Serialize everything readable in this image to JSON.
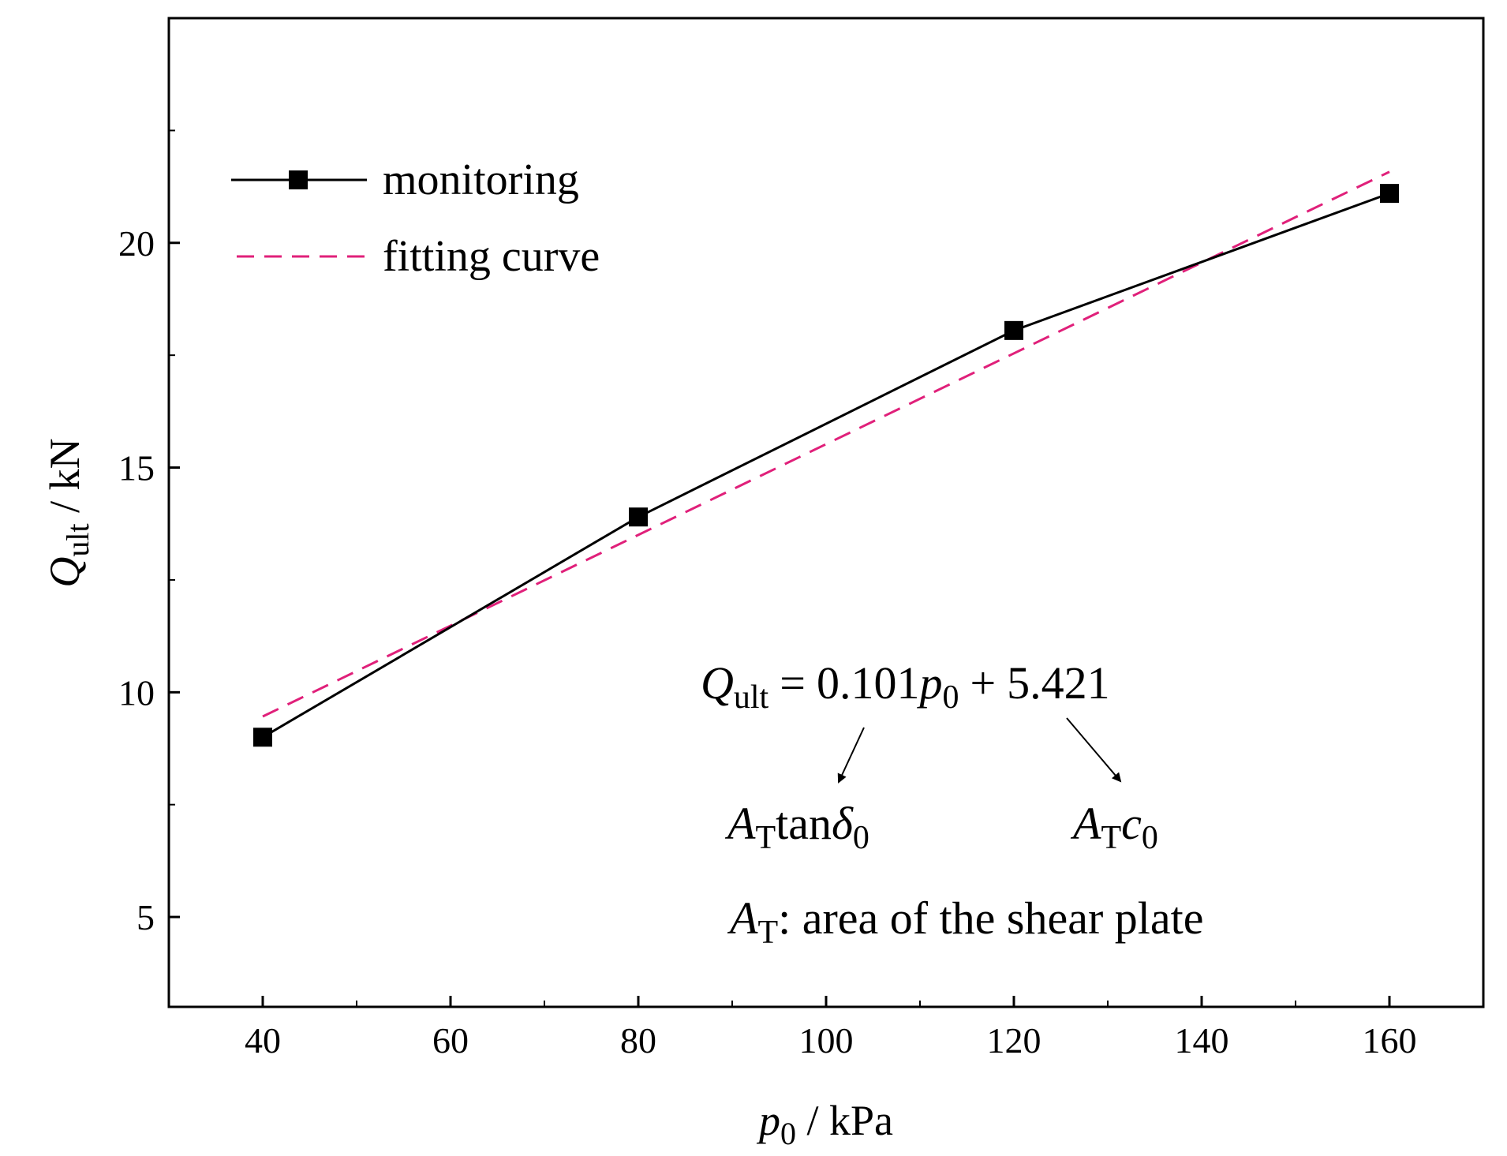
{
  "chart_data": {
    "type": "line",
    "xlabel": {
      "var": "p",
      "sub": "0",
      "unit": " / kPa"
    },
    "ylabel": {
      "var": "Q",
      "sub": "ult",
      "unit": " / kN"
    },
    "xlim": [
      30,
      170
    ],
    "ylim": [
      3,
      25
    ],
    "xticks": [
      40,
      60,
      80,
      100,
      120,
      140,
      160
    ],
    "xtick_labels": [
      "40",
      "60",
      "80",
      "100",
      "120",
      "140",
      "160"
    ],
    "xminor": [
      50,
      70,
      90,
      110,
      130,
      150
    ],
    "yticks": [
      5,
      10,
      15,
      20
    ],
    "ytick_labels": [
      "5",
      "10",
      "15",
      "20"
    ],
    "yminor": [
      7.5,
      12.5,
      17.5,
      22.5
    ],
    "series": [
      {
        "name": "monitoring",
        "style": "solid-square",
        "color": "#000000",
        "x": [
          40,
          80,
          120,
          160
        ],
        "y": [
          9.0,
          13.9,
          18.05,
          21.1
        ]
      },
      {
        "name": "fitting curve",
        "style": "dashed",
        "color": "#e0207a",
        "x": [
          40,
          160
        ],
        "y": [
          9.461,
          21.581
        ]
      }
    ],
    "legend": {
      "position": "top-left",
      "entries": [
        "monitoring",
        "fitting curve"
      ]
    },
    "equation": {
      "lhs_var": "Q",
      "lhs_sub": "ult",
      "equals": "=",
      "coef": "0.101",
      "var": "p",
      "var_sub": "0",
      "plus": "+",
      "intercept": "5.421"
    },
    "annotations": {
      "slope": {
        "var": "A",
        "sub": "T",
        "func": "tan",
        "greek": "δ",
        "greek_sub": "0"
      },
      "intercept": {
        "var": "A",
        "sub": "T",
        "sym": "c",
        "sym_sub": "0"
      },
      "note": {
        "var": "A",
        "sub": "T",
        "text": ": area of the shear plate"
      }
    }
  }
}
